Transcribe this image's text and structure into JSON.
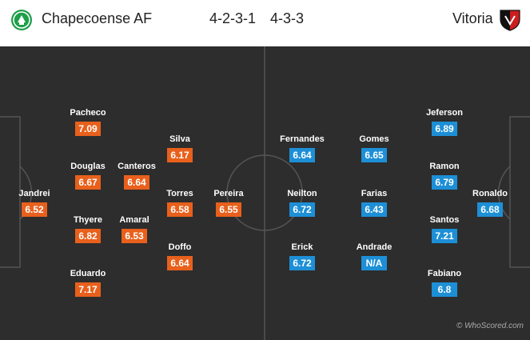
{
  "header": {
    "home_team": "Chapecoense AF",
    "home_formation": "4-2-3-1",
    "away_formation": "4-3-3",
    "away_team": "Vitoria",
    "home_crest_icon": "chapecoense-crest-icon",
    "away_crest_icon": "vitoria-crest-icon"
  },
  "colors": {
    "home_rating": "#e8601c",
    "away_rating": "#1d8fd6",
    "pitch": "#2d2d2d",
    "lines": "#555555"
  },
  "home_players": [
    {
      "name": "Jandrei",
      "rating": "6.52"
    },
    {
      "name": "Pacheco",
      "rating": "7.09"
    },
    {
      "name": "Douglas",
      "rating": "6.67"
    },
    {
      "name": "Thyere",
      "rating": "6.82"
    },
    {
      "name": "Eduardo",
      "rating": "7.17"
    },
    {
      "name": "Canteros",
      "rating": "6.64"
    },
    {
      "name": "Amaral",
      "rating": "6.53"
    },
    {
      "name": "Silva",
      "rating": "6.17"
    },
    {
      "name": "Torres",
      "rating": "6.58"
    },
    {
      "name": "Doffo",
      "rating": "6.64"
    },
    {
      "name": "Pereira",
      "rating": "6.55"
    }
  ],
  "away_players": [
    {
      "name": "Fernandes",
      "rating": "6.64"
    },
    {
      "name": "Neilton",
      "rating": "6.72"
    },
    {
      "name": "Erick",
      "rating": "6.72"
    },
    {
      "name": "Gomes",
      "rating": "6.65"
    },
    {
      "name": "Farias",
      "rating": "6.43"
    },
    {
      "name": "Andrade",
      "rating": "N/A"
    },
    {
      "name": "Jeferson",
      "rating": "6.89"
    },
    {
      "name": "Ramon",
      "rating": "6.79"
    },
    {
      "name": "Santos",
      "rating": "7.21"
    },
    {
      "name": "Fabiano",
      "rating": "6.8"
    },
    {
      "name": "Ronaldo",
      "rating": "6.68"
    }
  ],
  "credit": "© WhoScored.com"
}
